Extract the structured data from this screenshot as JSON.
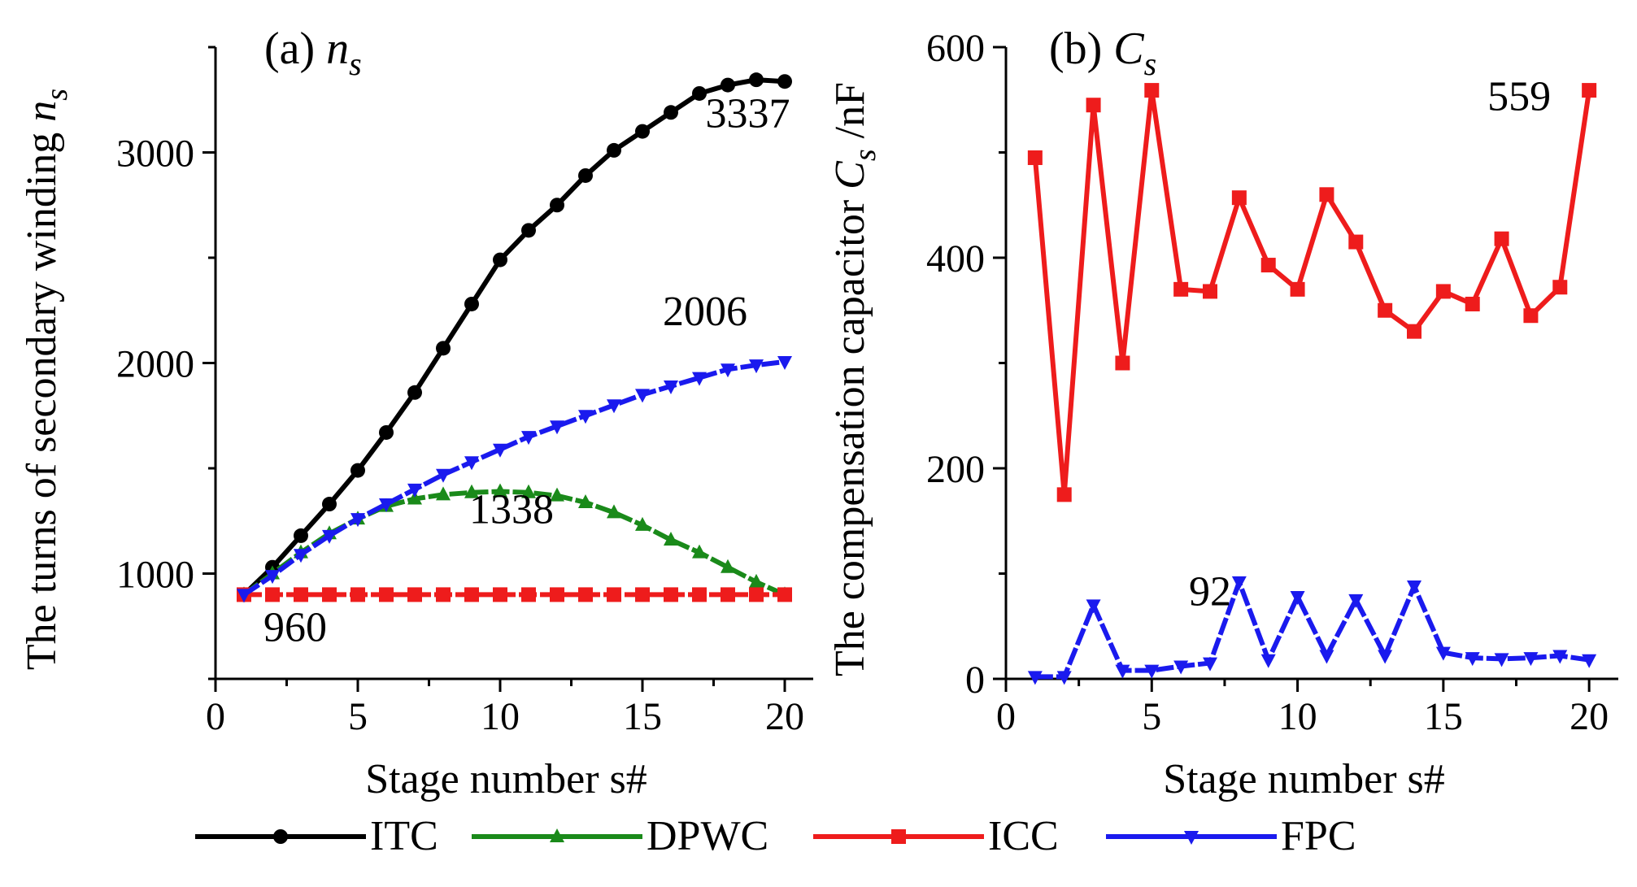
{
  "chart_data": [
    {
      "type": "line",
      "panel_label": "(a)",
      "panel_symbol": "n",
      "panel_symbol_sub": "s",
      "xlabel": "Stage number s#",
      "ylabel": "The turns of secondary winding",
      "ylabel_symbol": "n",
      "ylabel_symbol_sub": "s",
      "xlim": [
        0,
        21
      ],
      "ylim": [
        500,
        3500
      ],
      "xticks": [
        0,
        5,
        10,
        15,
        20
      ],
      "yticks": [
        1000,
        2000,
        3000
      ],
      "x": [
        1,
        2,
        3,
        4,
        5,
        6,
        7,
        8,
        9,
        10,
        11,
        12,
        13,
        14,
        15,
        16,
        17,
        18,
        19,
        20
      ],
      "series": [
        {
          "name": "ITC",
          "color": "#000000",
          "marker": "circle",
          "dashed": false,
          "values": [
            900,
            1030,
            1180,
            1330,
            1490,
            1670,
            1860,
            2070,
            2280,
            2490,
            2630,
            2750,
            2890,
            3010,
            3100,
            3190,
            3280,
            3320,
            3345,
            3337
          ]
        },
        {
          "name": "DPWC",
          "color": "#1a8a1a",
          "marker": "triangle-up",
          "dashed": true,
          "values": [
            900,
            1000,
            1100,
            1190,
            1260,
            1320,
            1355,
            1375,
            1385,
            1390,
            1385,
            1370,
            1338,
            1290,
            1230,
            1160,
            1100,
            1030,
            960,
            900
          ]
        },
        {
          "name": "ICC",
          "color": "#ee1c1c",
          "marker": "square",
          "dashed": true,
          "values": [
            900,
            900,
            900,
            900,
            900,
            900,
            900,
            900,
            900,
            900,
            900,
            900,
            900,
            900,
            900,
            900,
            900,
            900,
            900,
            900
          ]
        },
        {
          "name": "FPC",
          "color": "#1a1aee",
          "marker": "triangle-down",
          "dashed": true,
          "values": [
            900,
            990,
            1090,
            1180,
            1260,
            1330,
            1400,
            1470,
            1530,
            1590,
            1650,
            1700,
            1750,
            1800,
            1850,
            1890,
            1930,
            1970,
            1990,
            2006
          ]
        }
      ],
      "annotations": [
        {
          "text": "3337",
          "x": 18.7,
          "y": 3120
        },
        {
          "text": "2006",
          "x": 17.2,
          "y": 2180
        },
        {
          "text": "1338",
          "x": 10.4,
          "y": 1240
        },
        {
          "text": "960",
          "x": 2.8,
          "y": 680
        }
      ]
    },
    {
      "type": "line",
      "panel_label": "(b)",
      "panel_symbol": "C",
      "panel_symbol_sub": "s",
      "xlabel": "Stage number s#",
      "ylabel": "The compensation capacitor",
      "ylabel_symbol": "C",
      "ylabel_symbol_sub": "s",
      "ylabel_unit": "/nF",
      "xlim": [
        0,
        21
      ],
      "ylim": [
        0,
        600
      ],
      "xticks": [
        0,
        5,
        10,
        15,
        20
      ],
      "yticks": [
        0,
        200,
        400,
        600
      ],
      "x": [
        1,
        2,
        3,
        4,
        5,
        6,
        7,
        8,
        9,
        10,
        11,
        12,
        13,
        14,
        15,
        16,
        17,
        18,
        19,
        20
      ],
      "series": [
        {
          "name": "ICC",
          "color": "#ee1c1c",
          "marker": "square",
          "dashed": false,
          "values": [
            495,
            175,
            545,
            300,
            559,
            370,
            368,
            457,
            393,
            370,
            460,
            415,
            350,
            330,
            368,
            356,
            418,
            345,
            372,
            559
          ]
        },
        {
          "name": "FPC",
          "color": "#1a1aee",
          "marker": "triangle-down",
          "dashed": true,
          "values": [
            2,
            2,
            70,
            8,
            8,
            12,
            15,
            92,
            18,
            78,
            22,
            75,
            22,
            88,
            25,
            20,
            19,
            20,
            22,
            18
          ]
        }
      ],
      "annotations": [
        {
          "text": "559",
          "x": 17.6,
          "y": 540
        },
        {
          "text": "92",
          "x": 7.0,
          "y": 70
        }
      ]
    }
  ],
  "legend": {
    "placement": "bottom",
    "items": [
      {
        "name": "ITC",
        "color": "#000000",
        "marker": "circle"
      },
      {
        "name": "DPWC",
        "color": "#1a8a1a",
        "marker": "triangle-up"
      },
      {
        "name": "ICC",
        "color": "#ee1c1c",
        "marker": "square"
      },
      {
        "name": "FPC",
        "color": "#1a1aee",
        "marker": "triangle-down"
      }
    ]
  }
}
